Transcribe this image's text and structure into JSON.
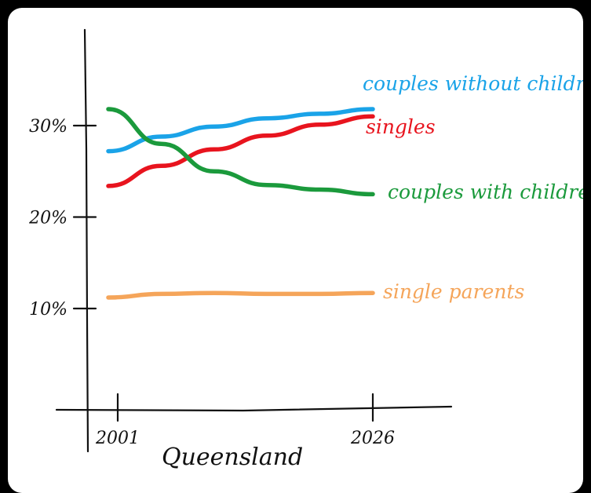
{
  "chart_data": {
    "type": "line",
    "title": "",
    "xlabel": "Queensland",
    "ylabel": "",
    "x": [
      2001,
      2026
    ],
    "x_ticks": [
      "2001",
      "2026"
    ],
    "y_ticks": [
      {
        "value": 10,
        "label": "10%"
      },
      {
        "value": 20,
        "label": "20%"
      },
      {
        "value": 30,
        "label": "30%"
      }
    ],
    "ylim": [
      0,
      40
    ],
    "grid": false,
    "legend": "labels at line ends",
    "series": [
      {
        "name": "couples without children",
        "color": "#1aa3e8",
        "points": [
          [
            2001,
            27.2
          ],
          [
            2006,
            28.8
          ],
          [
            2011,
            29.9
          ],
          [
            2016,
            30.8
          ],
          [
            2021,
            31.3
          ],
          [
            2026,
            31.8
          ]
        ]
      },
      {
        "name": "singles",
        "color": "#e8141e",
        "points": [
          [
            2001,
            23.4
          ],
          [
            2006,
            25.6
          ],
          [
            2011,
            27.4
          ],
          [
            2016,
            28.9
          ],
          [
            2021,
            30.1
          ],
          [
            2026,
            31.0
          ]
        ]
      },
      {
        "name": "couples with children",
        "color": "#1b9a3c",
        "points": [
          [
            2001,
            31.8
          ],
          [
            2006,
            28.0
          ],
          [
            2011,
            25.0
          ],
          [
            2016,
            23.5
          ],
          [
            2021,
            23.0
          ],
          [
            2026,
            22.5
          ]
        ]
      },
      {
        "name": "single parents",
        "color": "#f5a55a",
        "points": [
          [
            2001,
            11.2
          ],
          [
            2006,
            11.6
          ],
          [
            2011,
            11.7
          ],
          [
            2016,
            11.6
          ],
          [
            2021,
            11.6
          ],
          [
            2026,
            11.7
          ]
        ]
      }
    ]
  }
}
